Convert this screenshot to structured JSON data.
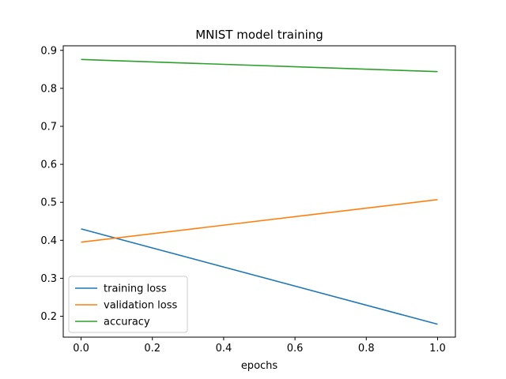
{
  "chart_data": {
    "type": "line",
    "title": "MNIST model training",
    "xlabel": "epochs",
    "ylabel": "",
    "xlim": [
      -0.05,
      1.05
    ],
    "ylim": [
      0.145,
      0.912
    ],
    "xticks": [
      0.0,
      0.2,
      0.4,
      0.6,
      0.8,
      1.0
    ],
    "xtick_labels": [
      "0.0",
      "0.2",
      "0.4",
      "0.6",
      "0.8",
      "1.0"
    ],
    "yticks": [
      0.2,
      0.3,
      0.4,
      0.5,
      0.6,
      0.7,
      0.8,
      0.9
    ],
    "ytick_labels": [
      "0.2",
      "0.3",
      "0.4",
      "0.5",
      "0.6",
      "0.7",
      "0.8",
      "0.9"
    ],
    "grid": false,
    "legend_position": "lower-left",
    "x": [
      0.0,
      1.0
    ],
    "series": [
      {
        "name": "training loss",
        "values": [
          0.43,
          0.179
        ],
        "color": "#1f77b4"
      },
      {
        "name": "validation loss",
        "values": [
          0.395,
          0.507
        ],
        "color": "#ff7f0e"
      },
      {
        "name": "accuracy",
        "values": [
          0.876,
          0.844
        ],
        "color": "#2ca02c"
      }
    ]
  }
}
